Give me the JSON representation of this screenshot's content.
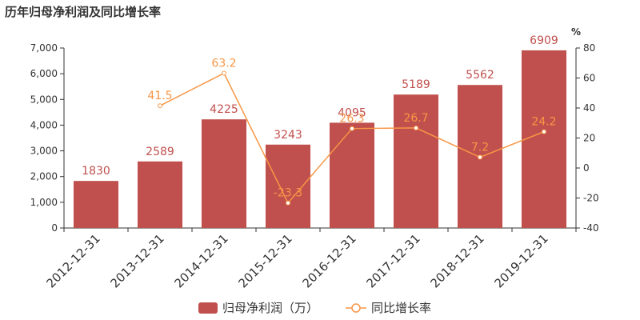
{
  "chart_data": {
    "type": "bar",
    "title": "历年归母净利润及同比增长率",
    "categories": [
      "2012-12-31",
      "2013-12-31",
      "2014-12-31",
      "2015-12-31",
      "2016-12-31",
      "2017-12-31",
      "2018-12-31",
      "2019-12-31"
    ],
    "series": [
      {
        "name": "归母净利润（万）",
        "type": "bar",
        "axis": "left",
        "color": "#c0504d",
        "values": [
          1830,
          2589,
          4225,
          3243,
          4095,
          5189,
          5562,
          6909
        ],
        "labels": [
          "1830",
          "2589",
          "4225",
          "3243",
          "4095",
          "5189",
          "5562",
          "6909"
        ]
      },
      {
        "name": "同比增长率",
        "type": "line",
        "axis": "right",
        "color": "#f79646",
        "values": [
          null,
          41.5,
          63.2,
          -23.3,
          26.3,
          26.7,
          7.2,
          24.2
        ],
        "labels": [
          "",
          "41.5",
          "63.2",
          "-23.3",
          "26.3",
          "26.7",
          "7.2",
          "24.2"
        ]
      }
    ],
    "y_left": {
      "ylim": [
        0,
        7000
      ],
      "ticks": [
        0,
        1000,
        2000,
        3000,
        4000,
        5000,
        6000,
        7000
      ],
      "tick_labels": [
        "0",
        "1,000",
        "2,000",
        "3,000",
        "4,000",
        "5,000",
        "6,000",
        "7,000"
      ]
    },
    "y_right": {
      "unit": "%",
      "ylim": [
        -40,
        80
      ],
      "ticks": [
        -40,
        -20,
        0,
        20,
        40,
        60,
        80
      ],
      "tick_labels": [
        "-40",
        "-20",
        "0",
        "20",
        "40",
        "60",
        "80"
      ]
    },
    "grid": false,
    "legend_position": "bottom-center",
    "xtick_rotation": -45
  }
}
